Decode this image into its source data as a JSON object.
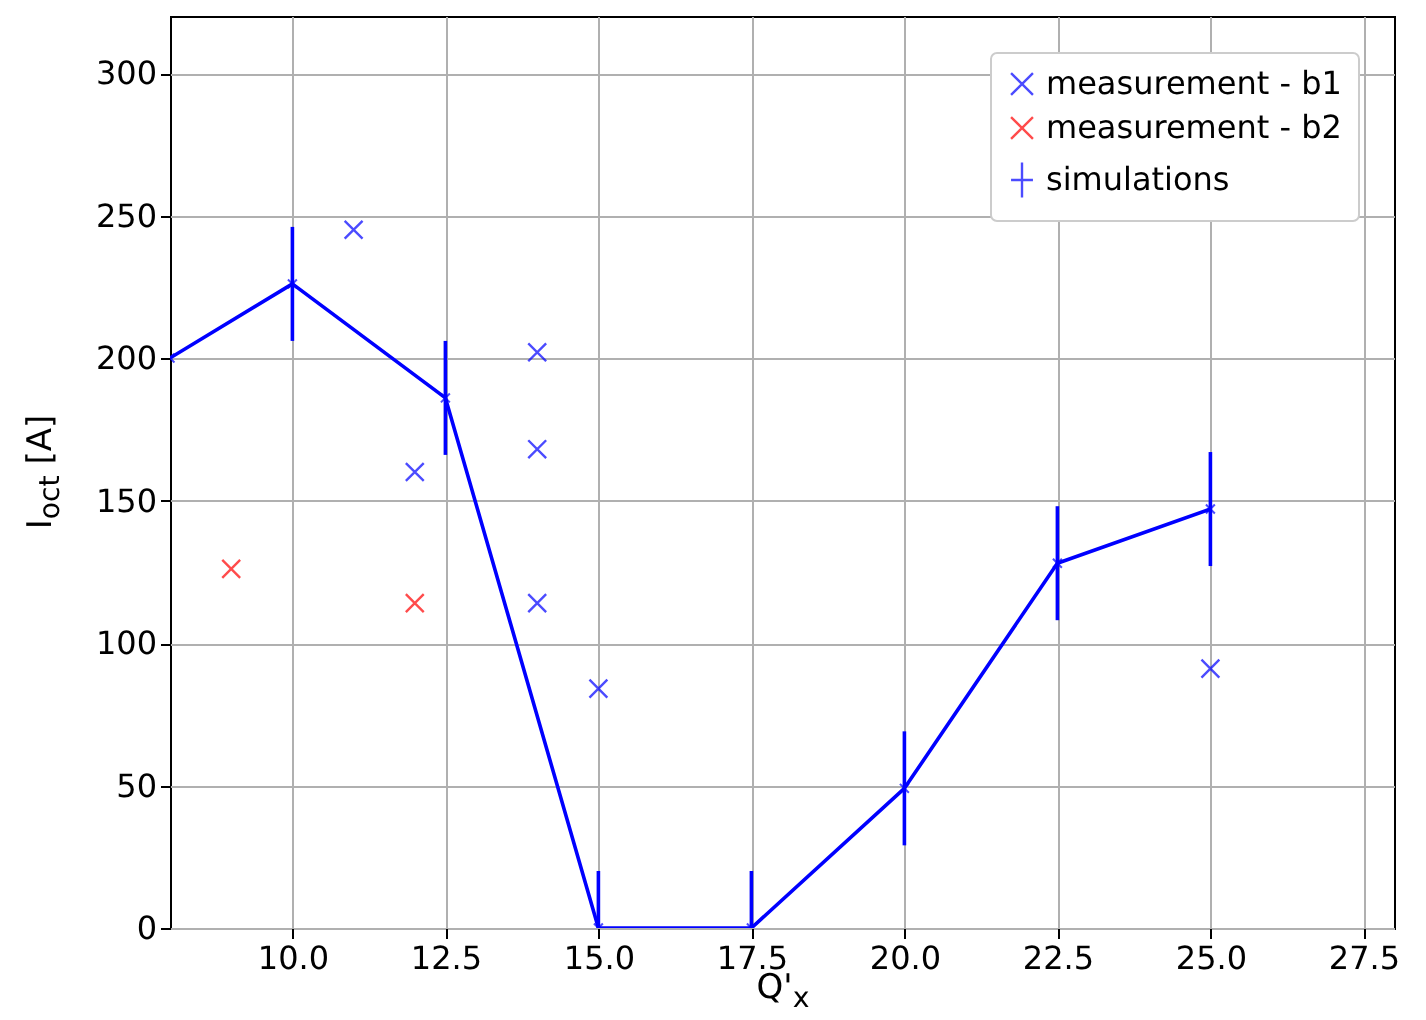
{
  "chart_data": {
    "type": "scatter",
    "xlabel": "Q'$_{x}$",
    "ylabel": "I$_{oct}$ [A]",
    "xlim": [
      8,
      28
    ],
    "ylim": [
      0,
      320
    ],
    "xticks": [
      {
        "value": 10,
        "label": "10.0"
      },
      {
        "value": 12.5,
        "label": "12.5"
      },
      {
        "value": 15,
        "label": "15.0"
      },
      {
        "value": 17.5,
        "label": "17.5"
      },
      {
        "value": 20,
        "label": "20.0"
      },
      {
        "value": 22.5,
        "label": "22.5"
      },
      {
        "value": 25,
        "label": "25.0"
      },
      {
        "value": 27.5,
        "label": "27.5"
      }
    ],
    "yticks": [
      0,
      50,
      100,
      150,
      200,
      250,
      300
    ],
    "grid": true,
    "legend": "top right",
    "marker": "cross",
    "series": [
      {
        "name": "measurement - b1",
        "color": "#0000ff",
        "x": [
          11,
          12,
          14,
          14,
          14,
          15,
          25
        ],
        "values": [
          245,
          160,
          202,
          168,
          114,
          84,
          91
        ]
      },
      {
        "name": "measurement - b2",
        "color": "#ff0000",
        "x": [
          9,
          12
        ],
        "values": [
          126,
          114
        ]
      },
      {
        "name": "simulations",
        "type": "line",
        "color": "#0000ff",
        "line_style": "solid",
        "x": [
          8,
          10,
          12.5,
          15,
          17.5,
          20,
          22.5,
          25
        ],
        "values": [
          200,
          226,
          186,
          0,
          0,
          49,
          128,
          147
        ],
        "errors": [
          null,
          20,
          20,
          [
            0,
            20
          ],
          [
            0,
            20
          ],
          20,
          20,
          20
        ]
      }
    ]
  }
}
